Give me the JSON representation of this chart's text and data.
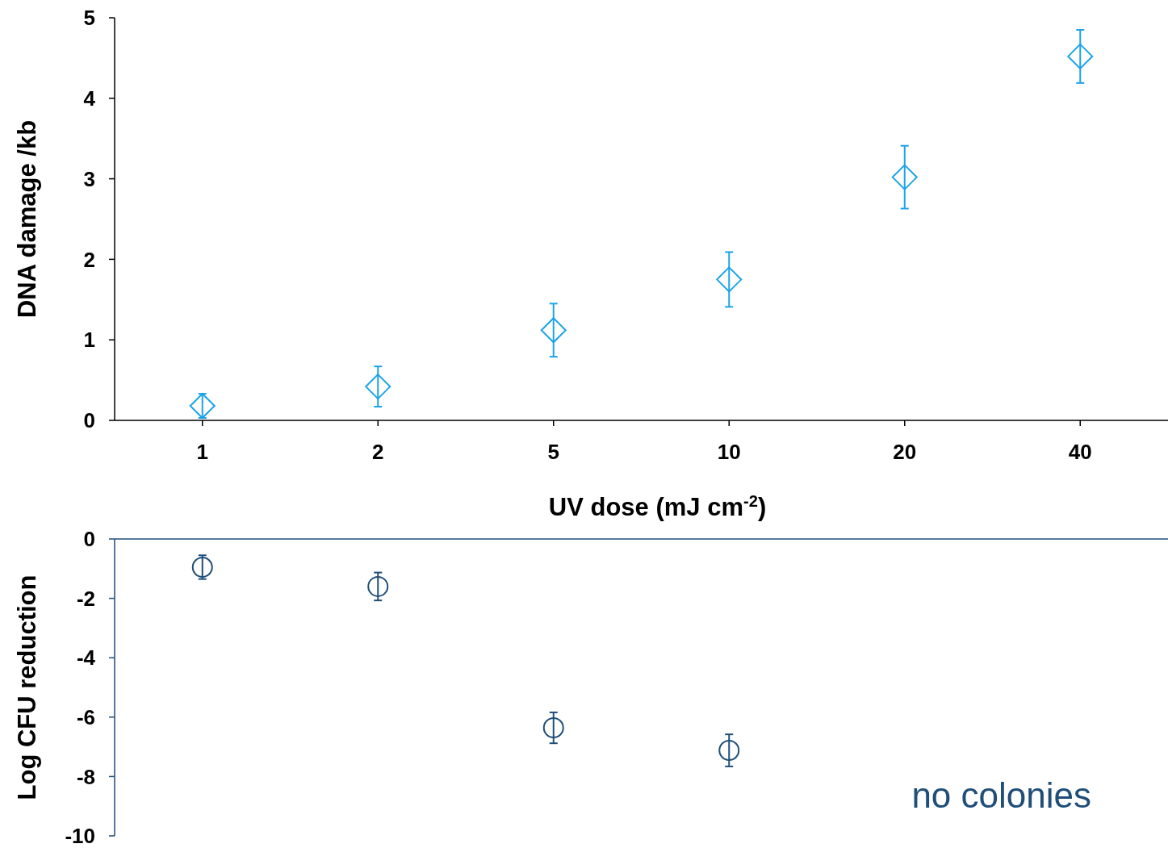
{
  "chart_data": [
    {
      "type": "scatter",
      "categories": [
        "1",
        "2",
        "5",
        "10",
        "20",
        "40"
      ],
      "ylabel": "DNA damage /kb",
      "xlabel": "UV dose (mJ cm$^{-2}$)",
      "ylim": [
        0,
        5
      ],
      "yticks": [
        0,
        1,
        2,
        3,
        4,
        5
      ],
      "marker": "diamond",
      "grid": false,
      "series": [
        {
          "color": "#1aa3e8",
          "values": [
            0.18,
            0.42,
            1.12,
            1.75,
            3.02,
            4.52
          ],
          "errors": [
            0.15,
            0.25,
            0.33,
            0.34,
            0.39,
            0.33
          ]
        }
      ]
    },
    {
      "type": "scatter",
      "categories": [
        "1",
        "2",
        "5",
        "10",
        "20",
        "40"
      ],
      "ylabel": "Log CFU reduction",
      "ylim": [
        -10,
        0
      ],
      "yticks": [
        -10,
        -8,
        -6,
        -4,
        -2,
        0
      ],
      "marker": "circle",
      "grid": false,
      "tick_labels": "y",
      "annotations": [
        "no colonies"
      ],
      "series": [
        {
          "color": "#1f4e79",
          "values": [
            -0.95,
            -1.6,
            -6.36,
            -7.12,
            null,
            null
          ],
          "errors": [
            0.4,
            0.47,
            0.52,
            0.54,
            null,
            null
          ]
        }
      ]
    }
  ]
}
